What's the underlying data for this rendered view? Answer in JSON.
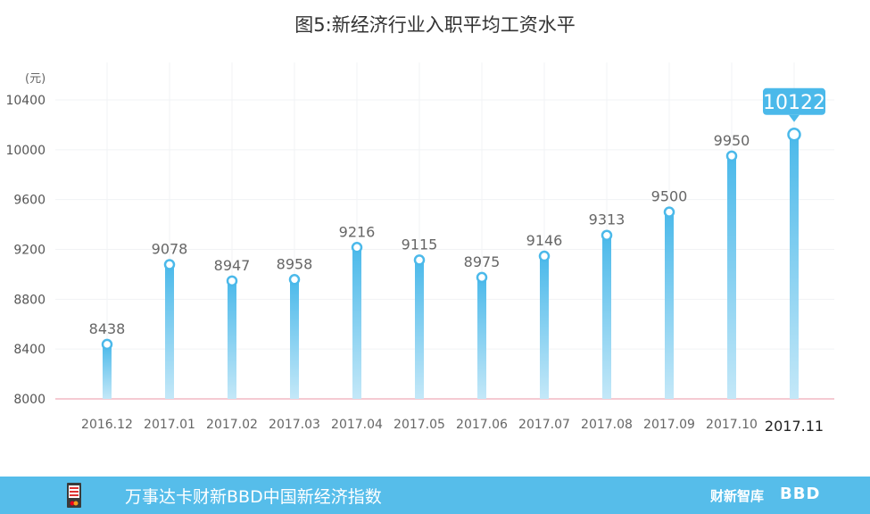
{
  "title": "图5:新经济行业入职平均工资水平",
  "chart_data": {
    "type": "bar",
    "ylabel": "(元)",
    "categories": [
      "2016.12",
      "2017.01",
      "2017.02",
      "2017.03",
      "2017.04",
      "2017.05",
      "2017.06",
      "2017.07",
      "2017.08",
      "2017.09",
      "2017.10",
      "2017.11"
    ],
    "values": [
      8438,
      9078,
      8947,
      8958,
      9216,
      9115,
      8975,
      9146,
      9313,
      9500,
      9950,
      10122
    ],
    "yticks": [
      8000,
      8400,
      8800,
      9200,
      9600,
      10000,
      10400
    ],
    "ylim": [
      8000,
      10400
    ],
    "highlight_index": 11,
    "grid": true,
    "colors": {
      "bar_top": "#4bb9ea",
      "bar_bottom": "#bfe6f7",
      "axis_line": "#f2b8c4",
      "callout": "#4bb9ea"
    }
  },
  "footer": {
    "text": "万事达卡财新BBD中国新经济指数",
    "brand1": "财新智库",
    "brand2": "BBD",
    "logo_icon": "mastercard-card-icon"
  }
}
